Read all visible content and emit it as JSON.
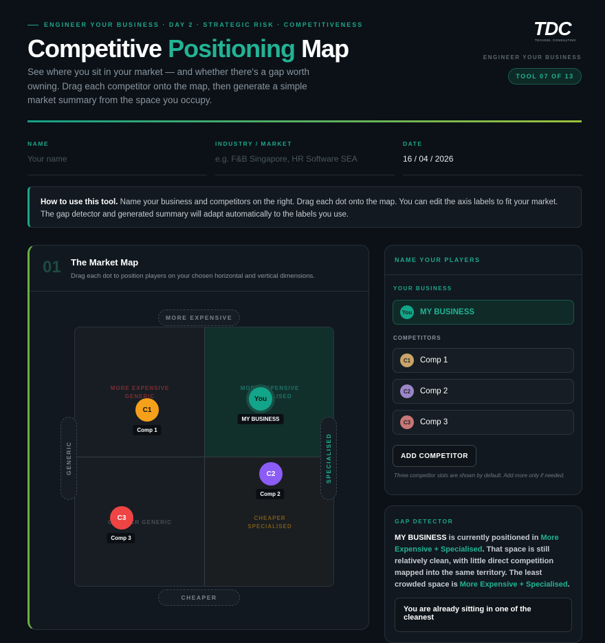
{
  "header": {
    "kicker": "ENGINEER YOUR BUSINESS · DAY 2 · STRATEGIC RISK · COMPETITIVENESS",
    "title": [
      "Competitive",
      "Positioning",
      "Map"
    ],
    "description": "See where you sit in your market — and whether there's a gap worth owning. Drag each competitor onto the map, then generate a simple market summary from the space you occupy.",
    "logo": "TDC",
    "logo_sub": "TECHSEL CONSULTING",
    "tagline": "ENGINEER YOUR BUSINESS",
    "badge": "TOOL 07 OF 13"
  },
  "fields": [
    {
      "label": "NAME",
      "placeholder": "Your name"
    },
    {
      "label": "INDUSTRY / MARKET",
      "placeholder": "e.g. F&B Singapore, HR Software SEA"
    },
    {
      "label": "DATE",
      "value": "16 / 04 / 2026"
    }
  ],
  "howto": {
    "bold": "How to use this tool.",
    "text": "Name your business and competitors on the right. Drag each dot onto the map. You can edit the axis labels to fit your market. The gap detector and generated summary will adapt automatically to the labels you use."
  },
  "map": {
    "number": "01",
    "title": "The Market Map",
    "subtitle": "Drag each dot to position players on your chosen horizontal and vertical dimensions.",
    "axes": {
      "top": "MORE EXPENSIVE",
      "bottom": "CHEAPER",
      "left": "GENERIC",
      "right": "SPECIALISED"
    },
    "quadrants": [
      "MORE EXPENSIVE GENERIC",
      "MORE EXPENSIVE SPECIALISED",
      "CHEAPER GENERIC",
      "CHEAPER SPECIALISED"
    ],
    "dots": [
      {
        "badge": "C1",
        "label": "Comp 1"
      },
      {
        "badge": "You",
        "label": "MY BUSINESS"
      },
      {
        "badge": "C2",
        "label": "Comp 2"
      },
      {
        "badge": "C3",
        "label": "Comp 3"
      }
    ]
  },
  "players": {
    "title": "NAME YOUR PLAYERS",
    "your_business_label": "YOUR BUSINESS",
    "you": {
      "badge": "You",
      "name": "MY BUSINESS"
    },
    "competitors_label": "COMPETITORS",
    "competitors": [
      {
        "badge": "C1",
        "name": "Comp 1"
      },
      {
        "badge": "C2",
        "name": "Comp 2"
      },
      {
        "badge": "C3",
        "name": "Comp 3"
      }
    ],
    "button": "ADD COMPETITOR",
    "note": "Three competitor slots are shown by default. Add more only if needed."
  },
  "gap": {
    "title": "GAP DETECTOR",
    "text": [
      "MY BUSINESS",
      " is currently positioned in ",
      "More Expensive + Specialised",
      ". That space is still relatively clean, with little direct competition mapped into the same territory. The least crowded space is ",
      "More Expensive + Specialised",
      "."
    ],
    "box": "You are already sitting in one of the cleanest"
  }
}
